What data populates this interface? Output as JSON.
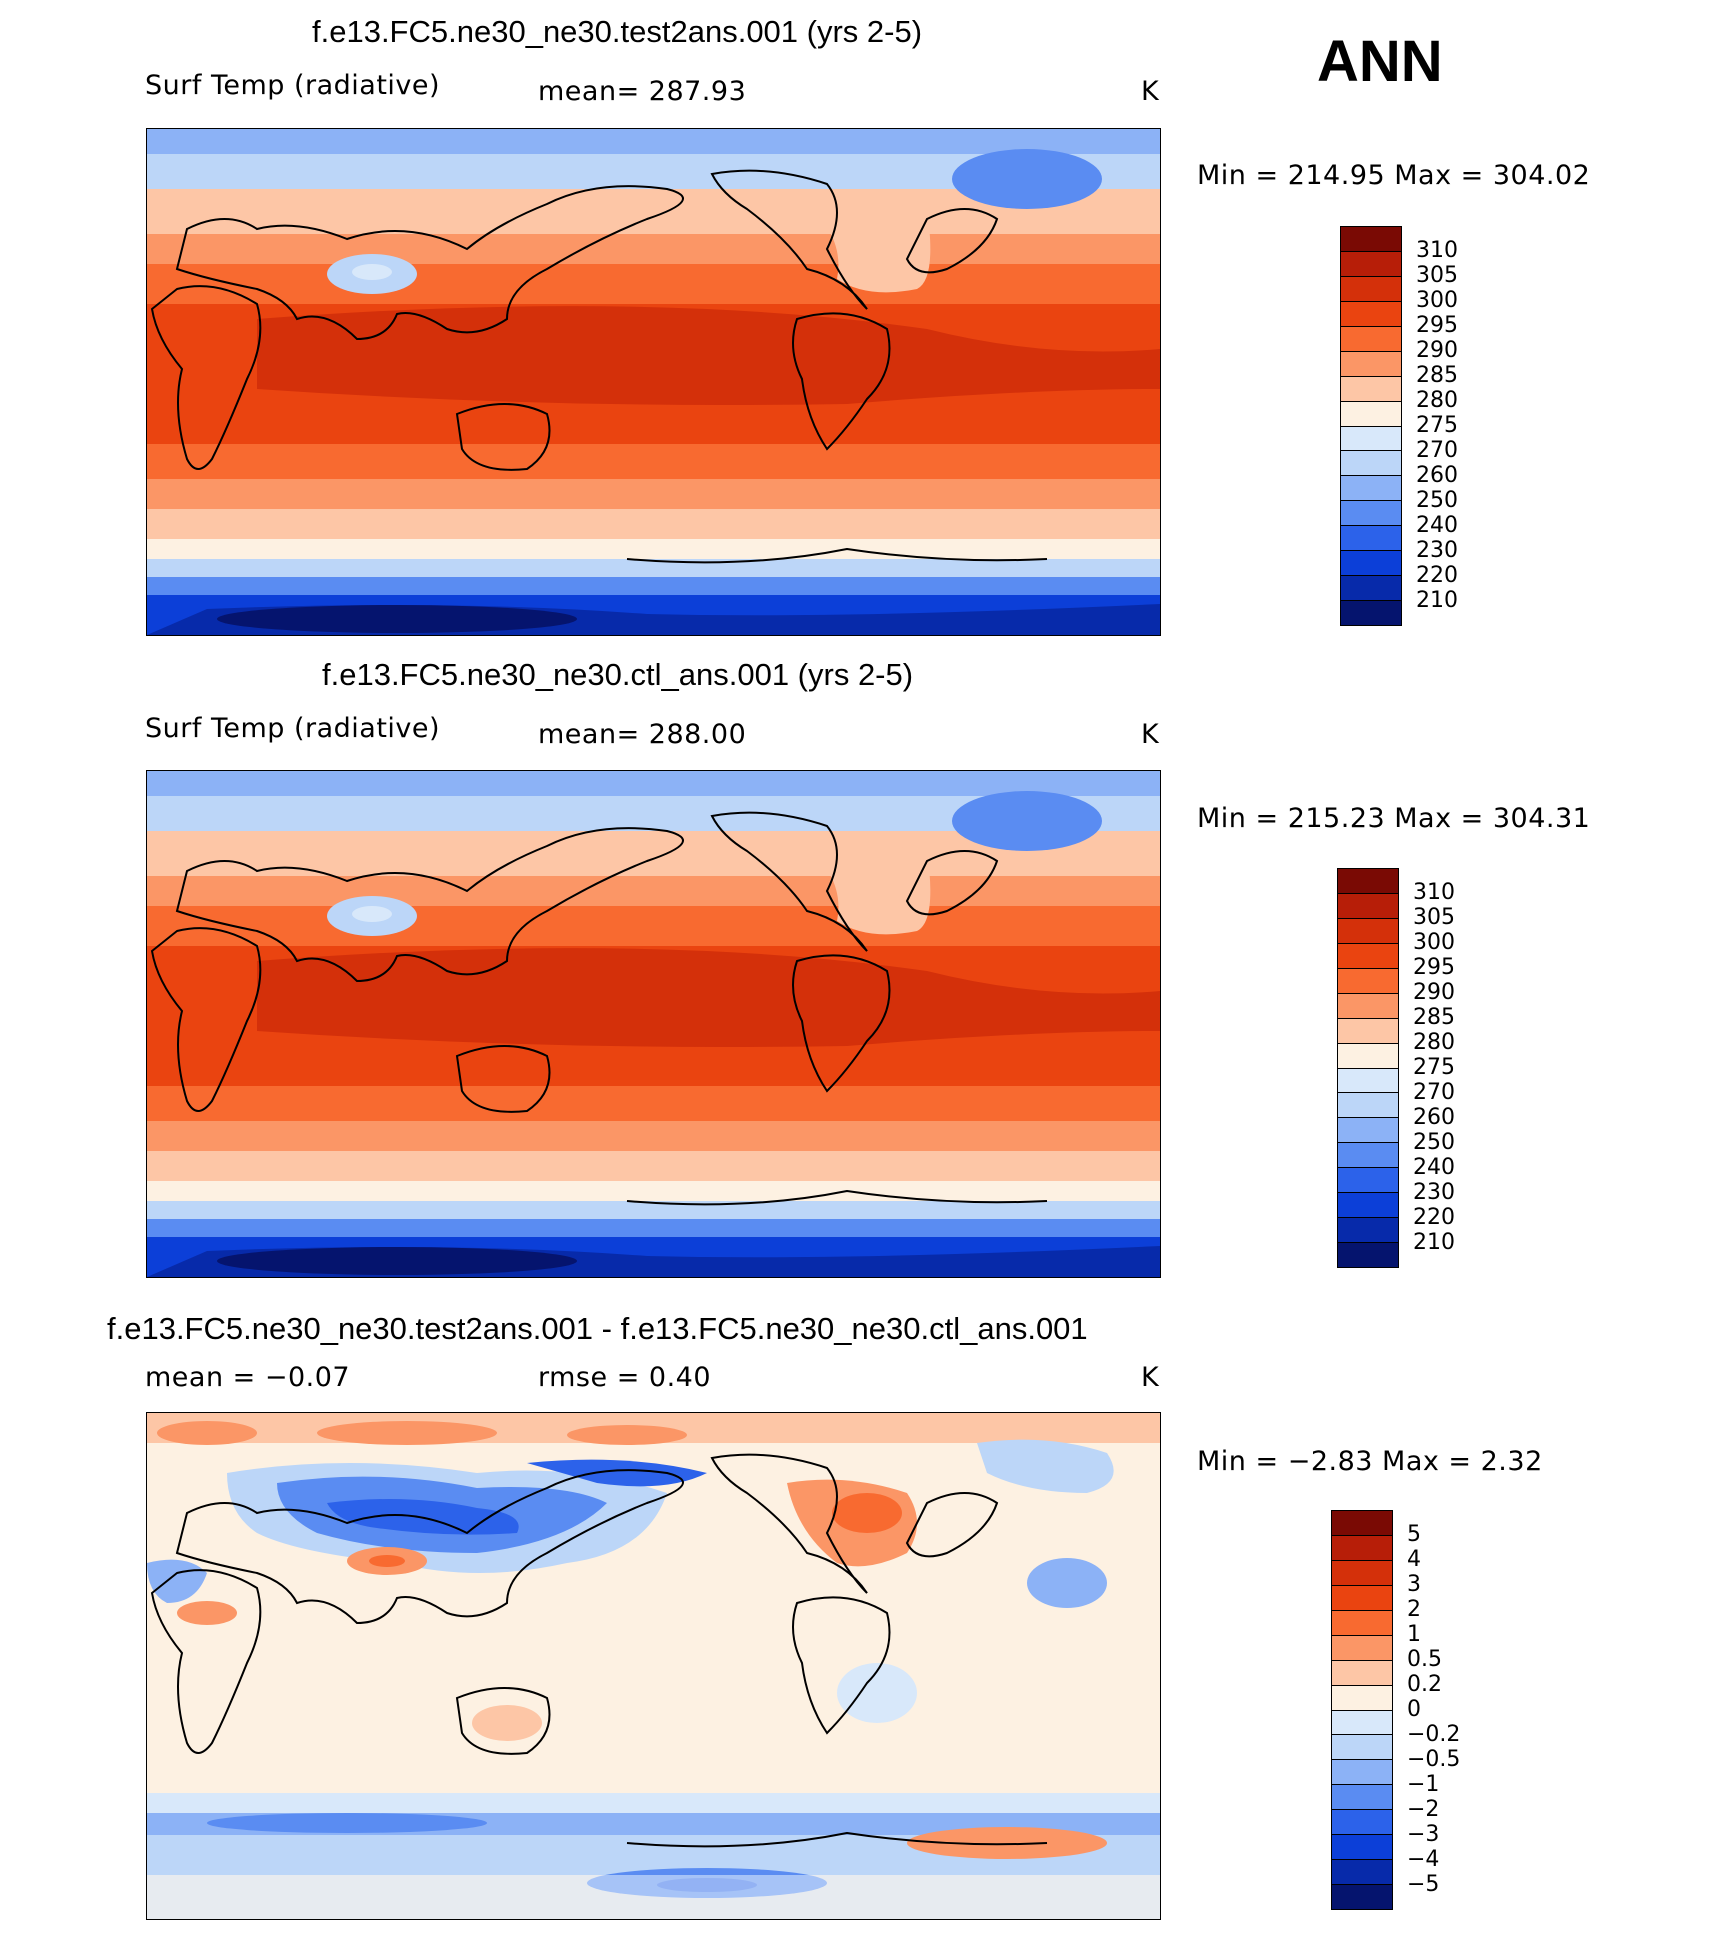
{
  "season": "ANN",
  "panels": [
    {
      "id": "test",
      "title": "f.e13.FC5.ne30_ne30.test2ans.001 (yrs 2-5)",
      "variable": "Surf Temp (radiative)",
      "stat": "mean=  287.93",
      "units": "K",
      "minmax": "Min  =  214.95  Max  =  304.02"
    },
    {
      "id": "ctl",
      "title": "f.e13.FC5.ne30_ne30.ctl_ans.001 (yrs 2-5)",
      "variable": "Surf Temp (radiative)",
      "stat": "mean=  288.00",
      "units": "K",
      "minmax": "Min  =  215.23  Max  =  304.31"
    },
    {
      "id": "diff",
      "title": "f.e13.FC5.ne30_ne30.test2ans.001 - f.e13.FC5.ne30_ne30.ctl_ans.001",
      "variable": "mean  =    −0.07",
      "stat": "rmse  =     0.40",
      "units": "K",
      "minmax": "Min  =    −2.83  Max  =     2.32"
    }
  ],
  "colorbars": {
    "temp": {
      "labels": [
        "310",
        "305",
        "300",
        "295",
        "290",
        "285",
        "280",
        "275",
        "270",
        "260",
        "250",
        "240",
        "230",
        "220",
        "210"
      ],
      "colors": [
        "#7a0a04",
        "#b71e08",
        "#d4300a",
        "#ea4410",
        "#f86a30",
        "#fb9666",
        "#fdc6a6",
        "#fdf1e2",
        "#d8e8fa",
        "#bcd6f8",
        "#8cb2f6",
        "#5a8cf2",
        "#2c62ea",
        "#0c3fd8",
        "#072aaa",
        "#05146e"
      ]
    },
    "diff": {
      "labels": [
        "5",
        "4",
        "3",
        "2",
        "1",
        "0.5",
        "0.2",
        "0",
        "−0.2",
        "−0.5",
        "−1",
        "−2",
        "−3",
        "−4",
        "−5"
      ],
      "colors": [
        "#7a0a04",
        "#b71e08",
        "#d4300a",
        "#ea4410",
        "#f86a30",
        "#fb9666",
        "#fdc6a6",
        "#fdf1e2",
        "#d8e8fa",
        "#bcd6f8",
        "#8cb2f6",
        "#5a8cf2",
        "#2c62ea",
        "#0c3fd8",
        "#072aaa",
        "#05146e"
      ]
    }
  }
}
